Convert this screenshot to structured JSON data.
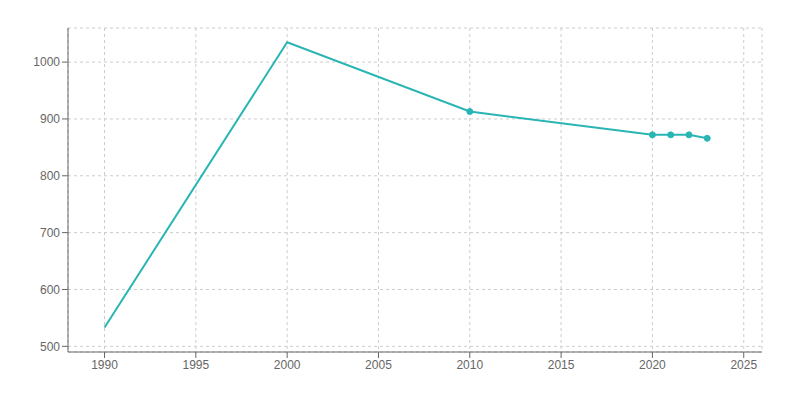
{
  "chart_data": {
    "type": "line",
    "x": [
      1990,
      2000,
      2010,
      2020,
      2021,
      2022,
      2023
    ],
    "series": [
      {
        "type": "line",
        "color": "#2ab5b5",
        "values": [
          533,
          1035,
          913,
          872,
          872,
          872,
          866
        ]
      },
      {
        "type": "scatter",
        "marker": "circle",
        "color": "#2ab5b5",
        "values": [
          null,
          null,
          913,
          872,
          872,
          872,
          866
        ]
      }
    ],
    "xlim": [
      1988,
      2026
    ],
    "ylim": [
      490,
      1060
    ],
    "xticks": [
      1990,
      1995,
      2000,
      2005,
      2010,
      2015,
      2020,
      2025
    ],
    "yticks": [
      500,
      600,
      700,
      800,
      900,
      1000
    ],
    "grid": true
  }
}
